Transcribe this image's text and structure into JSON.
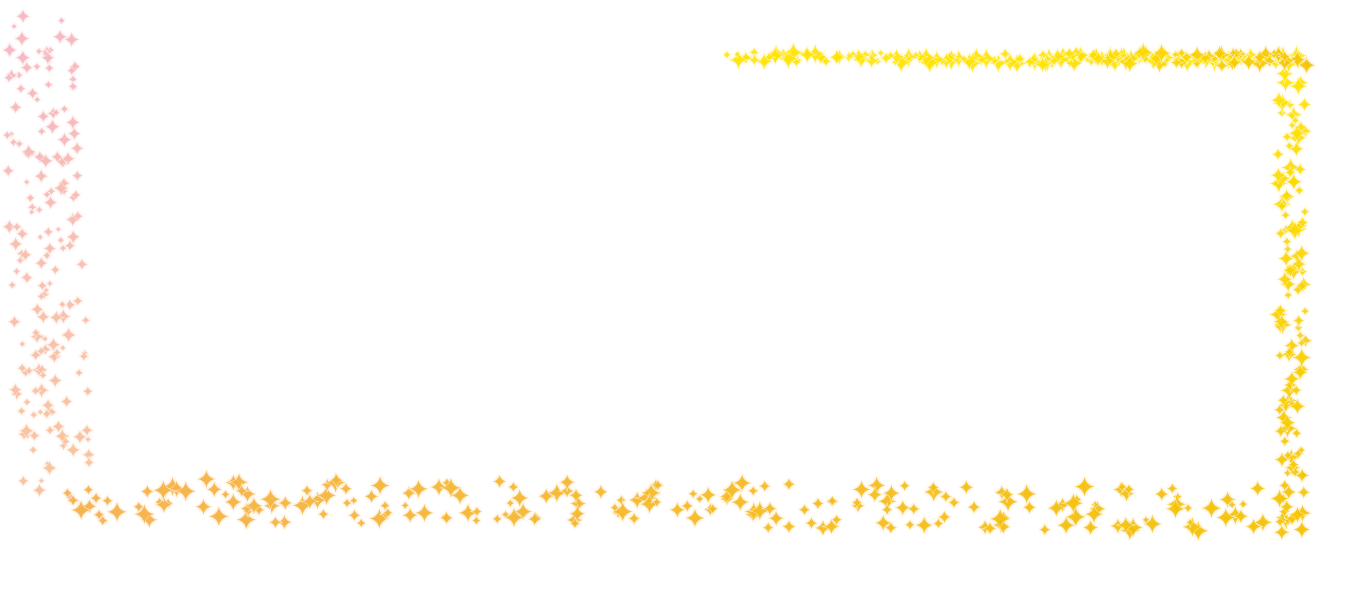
{
  "canvas": {
    "background": "#ffffff"
  },
  "sparkle_frame": {
    "icon": "four-point-sparkle-icon",
    "colors": {
      "pink": "#f7b7c3",
      "peach": "#f8c39b",
      "orange": "#f7b24d",
      "gold": "#f5c400",
      "yellow": "#ffe400"
    }
  }
}
